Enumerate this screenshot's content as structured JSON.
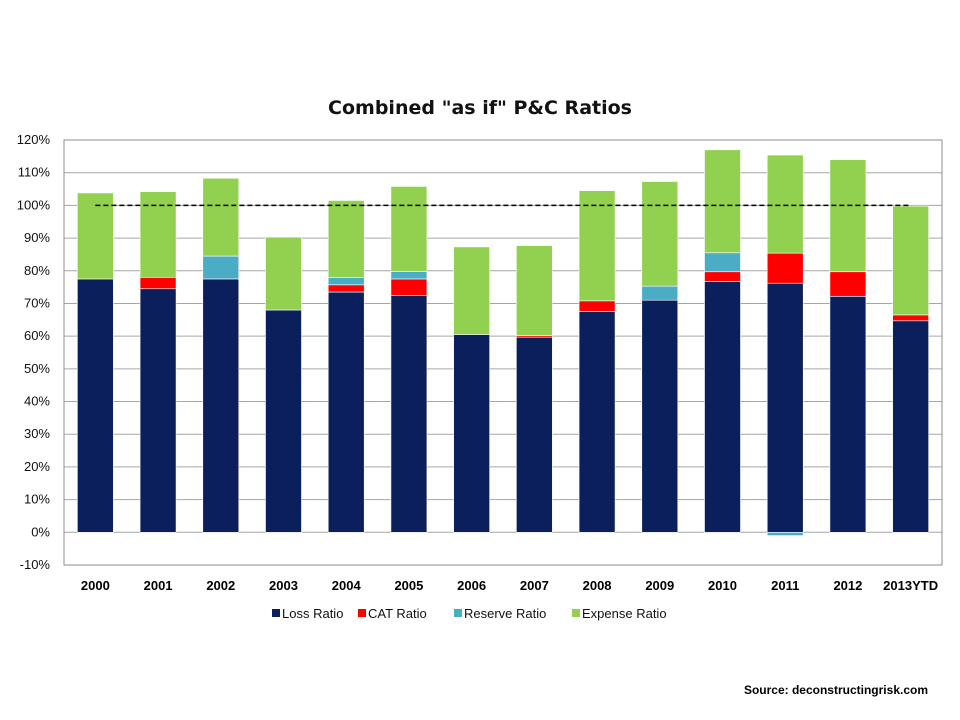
{
  "chart_data": {
    "type": "bar",
    "stacked": true,
    "title": "Combined \"as if\" P&C Ratios",
    "xlabel": "",
    "ylabel": "",
    "ylim": [
      -0.1,
      1.2
    ],
    "yticks": [
      -0.1,
      0.0,
      0.1,
      0.2,
      0.3,
      0.4,
      0.5,
      0.6,
      0.7,
      0.8,
      0.9,
      1.0,
      1.1,
      1.2
    ],
    "ytick_labels": [
      "-10%",
      "0%",
      "10%",
      "20%",
      "30%",
      "40%",
      "50%",
      "60%",
      "70%",
      "80%",
      "90%",
      "100%",
      "110%",
      "120%"
    ],
    "grid": true,
    "reference_line": {
      "value": 1.0,
      "style": "dashed"
    },
    "categories": [
      "2000",
      "2001",
      "2002",
      "2003",
      "2004",
      "2005",
      "2006",
      "2007",
      "2008",
      "2009",
      "2010",
      "2011",
      "2012",
      "2013YTD"
    ],
    "series": [
      {
        "name": "Loss Ratio",
        "color": "#0a1f5c",
        "values": [
          0.775,
          0.745,
          0.775,
          0.68,
          0.735,
          0.725,
          0.605,
          0.597,
          0.675,
          0.71,
          0.767,
          0.762,
          0.722,
          0.647
        ]
      },
      {
        "name": "CAT Ratio",
        "color": "#ff0000",
        "values": [
          0.0,
          0.035,
          0.0,
          0.0,
          0.022,
          0.05,
          0.0,
          0.005,
          0.033,
          0.0,
          0.03,
          0.092,
          0.075,
          0.018
        ]
      },
      {
        "name": "Reserve Ratio",
        "color": "#4bacc6",
        "values": [
          0.0,
          0.0,
          0.07,
          0.0,
          0.023,
          0.023,
          0.0,
          0.0,
          0.0,
          0.043,
          0.058,
          -0.01,
          0.0,
          0.0
        ]
      },
      {
        "name": "Expense Ratio",
        "color": "#92d050",
        "values": [
          0.263,
          0.262,
          0.238,
          0.223,
          0.235,
          0.26,
          0.268,
          0.275,
          0.337,
          0.32,
          0.315,
          0.3,
          0.343,
          0.333
        ]
      }
    ],
    "legend": {
      "position": "bottom"
    }
  },
  "source": "Source: deconstructingrisk.com"
}
